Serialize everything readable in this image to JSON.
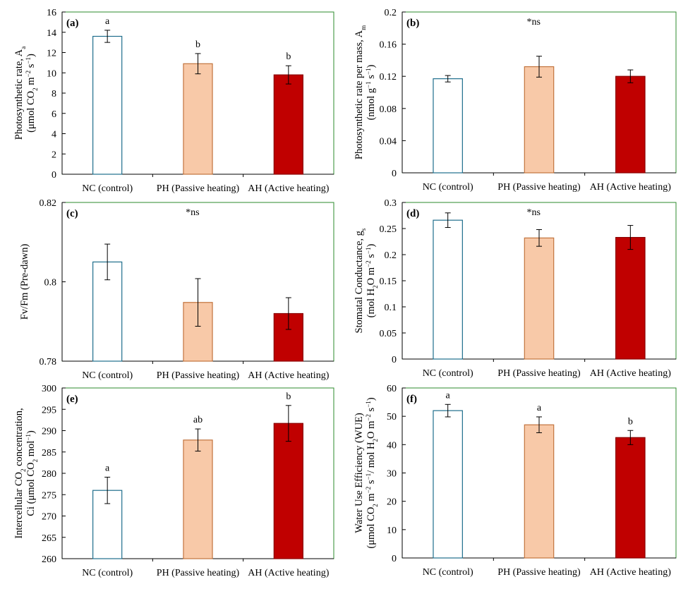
{
  "categories": [
    "NC (control)",
    "PH (Passive heating)",
    "AH (Active heating)"
  ],
  "colors": {
    "nc_stroke": "#1f6e8c",
    "nc_fill": "#ffffff",
    "ph_fill": "#f8c9a8",
    "ph_stroke": "#c2743e",
    "ah_fill": "#c00000",
    "ah_stroke": "#8b0000",
    "frame": "#2e8b2e"
  },
  "chart_data": [
    {
      "type": "bar",
      "panel_label": "(a)",
      "ylabel_lines": [
        "Photosynthetic rate, A<tspan baseline-shift='sub' font-size='9'>a</tspan>",
        "(μmol CO<tspan baseline-shift='sub' font-size='9'>2</tspan> m<tspan baseline-shift='super' font-size='9'>−2</tspan> s<tspan baseline-shift='super' font-size='9'>−1</tspan>)"
      ],
      "ylim": [
        0,
        16
      ],
      "ytick_labels": [
        "0",
        "2",
        "4",
        "6",
        "8",
        "10",
        "12",
        "14",
        "16"
      ],
      "values": [
        13.6,
        10.9,
        9.8
      ],
      "errors": [
        0.6,
        1.0,
        0.9
      ],
      "letters": [
        "a",
        "b",
        "b"
      ],
      "note": ""
    },
    {
      "type": "bar",
      "panel_label": "(b)",
      "ylabel_lines": [
        "Photosynthetic rate per mass, A<tspan baseline-shift='sub' font-size='9'>m</tspan>",
        "(nmol g<tspan baseline-shift='super' font-size='9'>−1</tspan> s<tspan baseline-shift='super' font-size='9'>−1</tspan>)"
      ],
      "ylim": [
        0,
        0.2
      ],
      "ytick_labels": [
        "0",
        "0.04",
        "0.08",
        "0.12",
        "0.16",
        "0.2"
      ],
      "values": [
        0.117,
        0.132,
        0.12
      ],
      "errors": [
        0.004,
        0.013,
        0.008
      ],
      "letters": [
        "",
        "",
        ""
      ],
      "note": "*ns"
    },
    {
      "type": "bar",
      "panel_label": "(c)",
      "ylabel_lines": [
        "Fv/Fm (Pre-dawn)"
      ],
      "ylim": [
        0.78,
        0.82
      ],
      "ytick_labels": [
        "0.78",
        "0.8",
        "0.82"
      ],
      "values": [
        0.805,
        0.7948,
        0.792
      ],
      "errors": [
        0.0045,
        0.006,
        0.004
      ],
      "letters": [
        "",
        "",
        ""
      ],
      "note": "*ns"
    },
    {
      "type": "bar",
      "panel_label": "(d)",
      "ylabel_lines": [
        "Stomatal Conductance, g<tspan baseline-shift='sub' font-size='9'>s</tspan>",
        "(mol H<tspan baseline-shift='sub' font-size='9'>2</tspan>O m<tspan baseline-shift='super' font-size='9'>−2</tspan> s<tspan baseline-shift='super' font-size='9'>−1</tspan>)"
      ],
      "ylim": [
        0,
        0.3
      ],
      "ytick_labels": [
        "0",
        "0.05",
        "0.1",
        "0.15",
        "0.2",
        "0.25",
        "0.3"
      ],
      "values": [
        0.266,
        0.232,
        0.233
      ],
      "errors": [
        0.014,
        0.016,
        0.023
      ],
      "letters": [
        "",
        "",
        ""
      ],
      "note": "*ns"
    },
    {
      "type": "bar",
      "panel_label": "(e)",
      "ylabel_lines": [
        "Intercellular CO<tspan baseline-shift='sub' font-size='9'>2</tspan> concentration,",
        "Ci (μmol CO<tspan baseline-shift='sub' font-size='9'>2</tspan> mol<tspan baseline-shift='super' font-size='9'>−1</tspan>)"
      ],
      "ylim": [
        260,
        300
      ],
      "ytick_labels": [
        "260",
        "265",
        "270",
        "275",
        "280",
        "285",
        "290",
        "295",
        "300"
      ],
      "values": [
        276,
        287.8,
        291.7
      ],
      "errors": [
        3.1,
        2.6,
        4.2
      ],
      "letters": [
        "a",
        "ab",
        "b"
      ],
      "note": ""
    },
    {
      "type": "bar",
      "panel_label": "(f)",
      "ylabel_lines": [
        "Water Use Efficiency (WUE)",
        "(μmol CO<tspan baseline-shift='sub' font-size='9'>2</tspan> m<tspan baseline-shift='super' font-size='9'>−2</tspan> s<tspan baseline-shift='super' font-size='9'>−1</tspan>/ mol H<tspan baseline-shift='sub' font-size='9'>2</tspan>O m<tspan baseline-shift='super' font-size='9'>−2</tspan> s<tspan baseline-shift='super' font-size='9'>−1</tspan>)"
      ],
      "ylim": [
        0,
        60
      ],
      "ytick_labels": [
        "0",
        "10",
        "20",
        "30",
        "40",
        "50",
        "60"
      ],
      "values": [
        52,
        47,
        42.5
      ],
      "errors": [
        2.2,
        2.8,
        2.5
      ],
      "letters": [
        "a",
        "a",
        "b"
      ],
      "note": ""
    }
  ]
}
